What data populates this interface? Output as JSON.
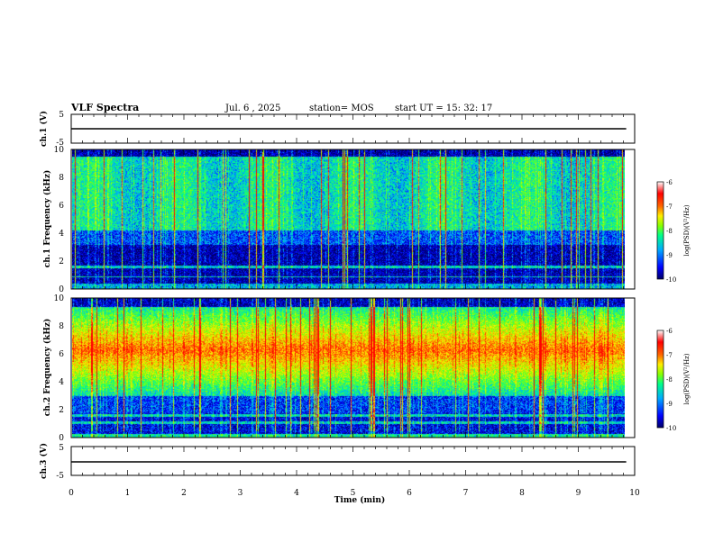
{
  "header": {
    "title": "VLF Spectra",
    "date": "Jul. 6 , 2025",
    "station": "station= MOS",
    "start_ut": "start UT =   15: 32: 17"
  },
  "colors": {
    "colormap": [
      "#000066",
      "#0000ff",
      "#00aaff",
      "#00ff88",
      "#88ff00",
      "#ffee00",
      "#ff6600",
      "#ff0000",
      "#ffffff"
    ]
  },
  "chart_data": [
    {
      "id": "ch1-waveform",
      "type": "line",
      "ylabel": "ch.1 (V)",
      "ylim": [
        -5,
        5
      ],
      "yticks": [
        "5",
        "-5"
      ],
      "xlim": [
        0,
        10
      ],
      "series": [
        {
          "name": "ch.1",
          "level": 0
        }
      ]
    },
    {
      "id": "ch1-spectrogram",
      "type": "heatmap",
      "ylabel": "ch.1 Frequency (kHz)",
      "ylim": [
        0,
        10
      ],
      "yticks": [
        "0",
        "2",
        "4",
        "6",
        "8",
        "10"
      ],
      "xlim": [
        0,
        10
      ],
      "data_end_min": 9.85,
      "colorbar": {
        "label": "log(PSD)(V²/Hz)",
        "range": [
          -10,
          -6
        ],
        "ticks": [
          "-6",
          "-7",
          "-8",
          "-9",
          "-10"
        ]
      }
    },
    {
      "id": "ch2-spectrogram",
      "type": "heatmap",
      "ylabel": "ch.2 Frequency (kHz)",
      "ylim": [
        0,
        10
      ],
      "yticks": [
        "0",
        "2",
        "4",
        "6",
        "8",
        "10"
      ],
      "xlim": [
        0,
        10
      ],
      "data_end_min": 9.85,
      "colorbar": {
        "label": "log(PSD)(V²/Hz)",
        "range": [
          -10,
          -6
        ],
        "ticks": [
          "-6",
          "-7",
          "-8",
          "-9",
          "-10"
        ]
      }
    },
    {
      "id": "ch3-waveform",
      "type": "line",
      "ylabel": "ch.3 (V)",
      "ylim": [
        -5,
        5
      ],
      "yticks": [
        "5",
        "-5"
      ],
      "xlim": [
        0,
        10
      ],
      "xlabel": "Time (min)",
      "xticks": [
        "0",
        "1",
        "2",
        "3",
        "4",
        "5",
        "6",
        "7",
        "8",
        "9",
        "10"
      ],
      "series": [
        {
          "name": "ch.3",
          "level": 0
        }
      ]
    }
  ]
}
